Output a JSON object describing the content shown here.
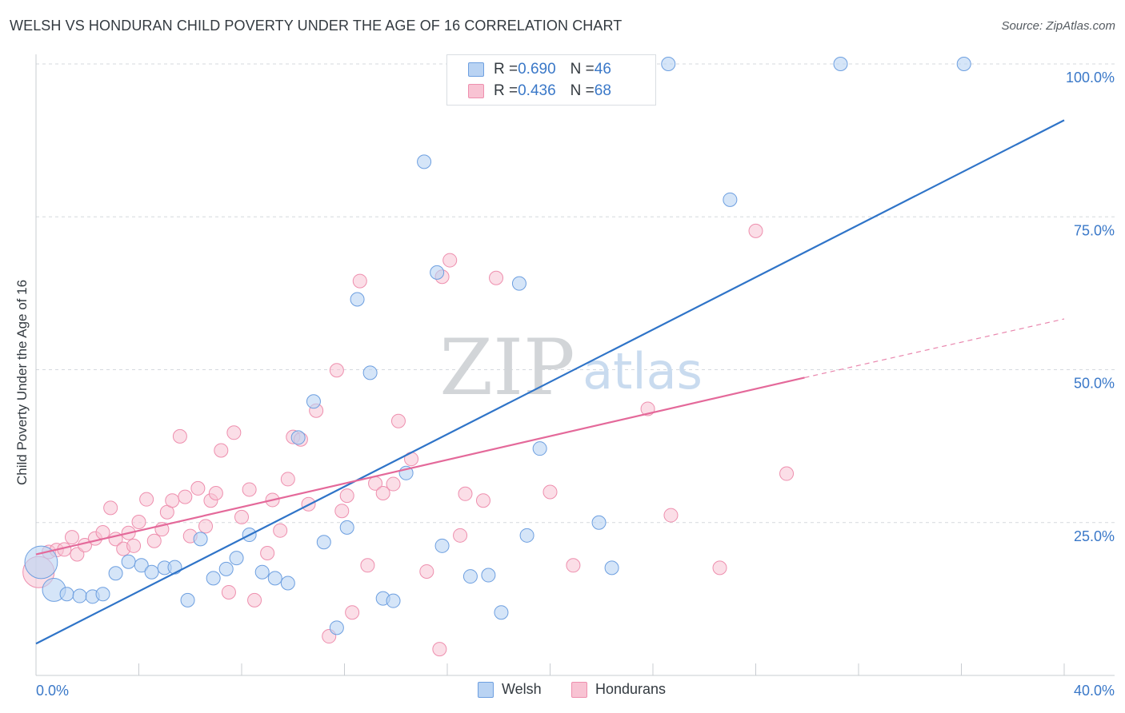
{
  "title": "WELSH VS HONDURAN CHILD POVERTY UNDER THE AGE OF 16 CORRELATION CHART",
  "source": "Source: ZipAtlas.com",
  "watermark": {
    "zip": "ZIP",
    "atlas": "atlas"
  },
  "legend": {
    "rows": [
      {
        "r_label": "R = ",
        "r_value": "0.690",
        "n_label": "N = ",
        "n_value": "46"
      },
      {
        "r_label": "R = ",
        "r_value": "0.436",
        "n_label": "N = ",
        "n_value": "68"
      }
    ]
  },
  "bottom_legend": [
    "Welsh",
    "Hondurans"
  ],
  "colors": {
    "welsh_fill": "#b9d3f3",
    "welsh_stroke": "#6d9fe0",
    "welsh_line": "#2f74c8",
    "hond_fill": "#f8c3d3",
    "hond_stroke": "#ee8fae",
    "hond_line": "#e4699a",
    "tick_text": "#3a78c8",
    "grid": "#d5d9de"
  },
  "chart_data": {
    "type": "scatter",
    "title": "WELSH VS HONDURAN CHILD POVERTY UNDER THE AGE OF 16 CORRELATION CHART",
    "xlabel": "",
    "ylabel": "Child Poverty Under the Age of 16",
    "xlim": [
      0,
      40
    ],
    "ylim": [
      0,
      100
    ],
    "x_tick_labels": [
      "0.0%",
      "40.0%"
    ],
    "y_ticks": [
      25,
      50,
      75,
      100
    ],
    "y_tick_labels": [
      "25.0%",
      "50.0%",
      "75.0%",
      "100.0%"
    ],
    "grid": true,
    "legend_position": "top-center",
    "series": [
      {
        "name": "Welsh",
        "r": 0.69,
        "n": 46,
        "trend": {
          "x": [
            0,
            40
          ],
          "y": [
            5.2,
            90.8
          ],
          "style": "solid"
        },
        "points": [
          {
            "x": 0.2,
            "y": 18.5,
            "s": 2.4
          },
          {
            "x": 0.7,
            "y": 14.0,
            "s": 1.7
          },
          {
            "x": 1.2,
            "y": 13.3
          },
          {
            "x": 1.7,
            "y": 13.0
          },
          {
            "x": 2.2,
            "y": 12.9
          },
          {
            "x": 2.6,
            "y": 13.3
          },
          {
            "x": 3.1,
            "y": 16.7
          },
          {
            "x": 3.6,
            "y": 18.6
          },
          {
            "x": 4.1,
            "y": 18.0
          },
          {
            "x": 4.5,
            "y": 16.9
          },
          {
            "x": 5.0,
            "y": 17.6
          },
          {
            "x": 5.4,
            "y": 17.7
          },
          {
            "x": 5.9,
            "y": 12.3
          },
          {
            "x": 6.4,
            "y": 22.3
          },
          {
            "x": 6.9,
            "y": 15.9
          },
          {
            "x": 7.4,
            "y": 17.4
          },
          {
            "x": 7.8,
            "y": 19.2
          },
          {
            "x": 8.3,
            "y": 23.0
          },
          {
            "x": 8.8,
            "y": 16.9
          },
          {
            "x": 9.3,
            "y": 15.9
          },
          {
            "x": 9.8,
            "y": 15.1
          },
          {
            "x": 10.2,
            "y": 38.9
          },
          {
            "x": 10.8,
            "y": 44.8
          },
          {
            "x": 11.2,
            "y": 21.8
          },
          {
            "x": 11.7,
            "y": 7.8
          },
          {
            "x": 12.1,
            "y": 24.2
          },
          {
            "x": 12.5,
            "y": 61.5
          },
          {
            "x": 13.0,
            "y": 49.5
          },
          {
            "x": 13.5,
            "y": 12.6
          },
          {
            "x": 13.9,
            "y": 12.2
          },
          {
            "x": 14.4,
            "y": 33.1
          },
          {
            "x": 15.1,
            "y": 84.0
          },
          {
            "x": 15.6,
            "y": 65.9
          },
          {
            "x": 15.8,
            "y": 21.2
          },
          {
            "x": 16.9,
            "y": 16.2
          },
          {
            "x": 17.6,
            "y": 16.4
          },
          {
            "x": 18.1,
            "y": 10.3
          },
          {
            "x": 18.8,
            "y": 64.1
          },
          {
            "x": 19.1,
            "y": 22.9
          },
          {
            "x": 19.6,
            "y": 37.1
          },
          {
            "x": 21.9,
            "y": 25.0
          },
          {
            "x": 22.4,
            "y": 17.6
          },
          {
            "x": 24.6,
            "y": 100.0
          },
          {
            "x": 27.0,
            "y": 77.8
          },
          {
            "x": 31.3,
            "y": 100.0
          },
          {
            "x": 36.1,
            "y": 100.0
          }
        ]
      },
      {
        "name": "Hondurans",
        "r": 0.436,
        "n": 68,
        "trend": {
          "x": [
            0,
            29.9,
            40
          ],
          "y": [
            19.8,
            48.7,
            58.3
          ],
          "style": "solid-then-dashed"
        },
        "points": [
          {
            "x": 0.1,
            "y": 16.9,
            "s": 2.3
          },
          {
            "x": 0.5,
            "y": 20.2
          },
          {
            "x": 0.8,
            "y": 20.5
          },
          {
            "x": 1.1,
            "y": 20.6
          },
          {
            "x": 1.4,
            "y": 22.6
          },
          {
            "x": 1.6,
            "y": 19.8
          },
          {
            "x": 1.9,
            "y": 21.3
          },
          {
            "x": 2.3,
            "y": 22.4
          },
          {
            "x": 2.6,
            "y": 23.4
          },
          {
            "x": 2.9,
            "y": 27.4
          },
          {
            "x": 3.1,
            "y": 22.3
          },
          {
            "x": 3.4,
            "y": 20.7
          },
          {
            "x": 3.6,
            "y": 23.3
          },
          {
            "x": 3.8,
            "y": 21.2
          },
          {
            "x": 4.0,
            "y": 25.1
          },
          {
            "x": 4.3,
            "y": 28.8
          },
          {
            "x": 4.6,
            "y": 22.0
          },
          {
            "x": 4.9,
            "y": 23.9
          },
          {
            "x": 5.1,
            "y": 26.7
          },
          {
            "x": 5.3,
            "y": 28.6
          },
          {
            "x": 5.6,
            "y": 39.1
          },
          {
            "x": 5.8,
            "y": 29.2
          },
          {
            "x": 6.0,
            "y": 22.8
          },
          {
            "x": 6.3,
            "y": 30.6
          },
          {
            "x": 6.6,
            "y": 24.4
          },
          {
            "x": 6.8,
            "y": 28.6
          },
          {
            "x": 7.0,
            "y": 29.8
          },
          {
            "x": 7.2,
            "y": 36.8
          },
          {
            "x": 7.5,
            "y": 13.6
          },
          {
            "x": 7.7,
            "y": 39.7
          },
          {
            "x": 8.0,
            "y": 25.9
          },
          {
            "x": 8.3,
            "y": 30.4
          },
          {
            "x": 8.5,
            "y": 12.3
          },
          {
            "x": 9.0,
            "y": 20.0
          },
          {
            "x": 9.2,
            "y": 28.7
          },
          {
            "x": 9.5,
            "y": 23.7
          },
          {
            "x": 9.8,
            "y": 32.1
          },
          {
            "x": 10.0,
            "y": 39.0
          },
          {
            "x": 10.3,
            "y": 38.6
          },
          {
            "x": 10.6,
            "y": 28.0
          },
          {
            "x": 10.9,
            "y": 43.3
          },
          {
            "x": 11.4,
            "y": 6.4
          },
          {
            "x": 11.7,
            "y": 49.9
          },
          {
            "x": 11.9,
            "y": 26.9
          },
          {
            "x": 12.1,
            "y": 29.4
          },
          {
            "x": 12.3,
            "y": 10.3
          },
          {
            "x": 12.6,
            "y": 64.5
          },
          {
            "x": 12.9,
            "y": 18.0
          },
          {
            "x": 13.2,
            "y": 31.4
          },
          {
            "x": 13.5,
            "y": 29.8
          },
          {
            "x": 13.9,
            "y": 31.3
          },
          {
            "x": 14.1,
            "y": 41.6
          },
          {
            "x": 14.6,
            "y": 35.4
          },
          {
            "x": 15.2,
            "y": 17.0
          },
          {
            "x": 15.7,
            "y": 4.3
          },
          {
            "x": 15.8,
            "y": 65.2
          },
          {
            "x": 16.1,
            "y": 67.9
          },
          {
            "x": 16.5,
            "y": 22.9
          },
          {
            "x": 16.7,
            "y": 29.7
          },
          {
            "x": 17.4,
            "y": 28.6
          },
          {
            "x": 17.9,
            "y": 65.0
          },
          {
            "x": 20.0,
            "y": 30.0
          },
          {
            "x": 20.9,
            "y": 18.0
          },
          {
            "x": 23.8,
            "y": 43.6
          },
          {
            "x": 24.7,
            "y": 26.2
          },
          {
            "x": 26.6,
            "y": 17.6
          },
          {
            "x": 28.0,
            "y": 72.7
          },
          {
            "x": 29.2,
            "y": 33.0
          }
        ]
      }
    ]
  }
}
